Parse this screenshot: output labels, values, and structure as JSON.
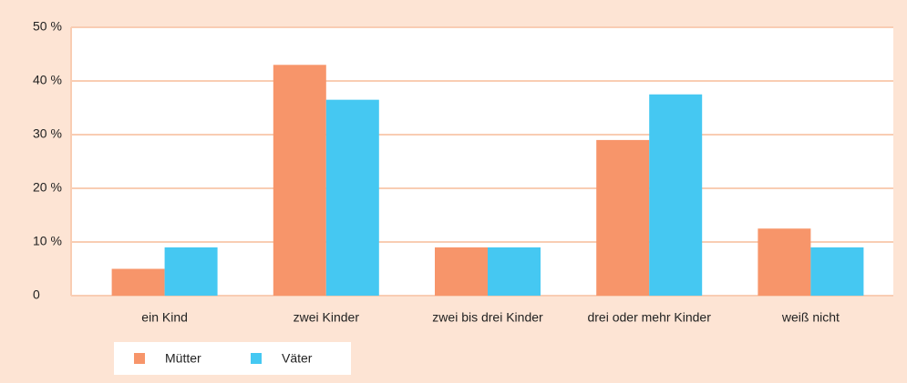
{
  "chart_data": {
    "type": "bar",
    "categories": [
      "ein Kind",
      "zwei Kinder",
      "zwei bis drei Kinder",
      "drei oder mehr Kinder",
      "weiß nicht"
    ],
    "series": [
      {
        "name": "Mütter",
        "color": "#f7956a",
        "values": [
          5,
          43,
          9,
          29,
          12.5
        ]
      },
      {
        "name": "Väter",
        "color": "#45c8f2",
        "values": [
          9,
          36.5,
          9,
          37.5,
          9
        ]
      }
    ],
    "ylim": [
      0,
      50
    ],
    "yticks": [
      0,
      {
        "value": 10,
        "label": "10 %"
      },
      {
        "value": 20,
        "label": "20 %"
      },
      {
        "value": 30,
        "label": "30 %"
      },
      {
        "value": 40,
        "label": "40 %"
      },
      {
        "value": 50,
        "label": "50 %"
      }
    ],
    "grid": true
  }
}
